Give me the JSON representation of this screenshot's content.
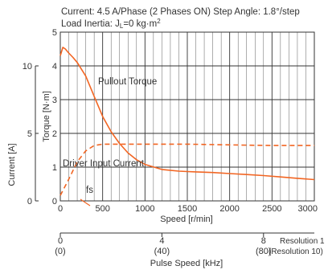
{
  "header": {
    "line1": "Current: 4.5 A/Phase (2 Phases ON)   Step Angle: 1.8°/step",
    "line2_prefix": "Load Inertia: J",
    "line2_sub": "L",
    "line2_suffix": "=0 kg·m",
    "line2_sup": "2"
  },
  "colors": {
    "curve": "#f26522",
    "grid": "#333333",
    "text": "#333333"
  },
  "chart_data": {
    "type": "line",
    "xlabel": "Speed [r/min]",
    "xlim": [
      0,
      3000
    ],
    "x_ticks": [
      0,
      500,
      1000,
      1500,
      2000,
      2500,
      3000
    ],
    "minor_x_step": 100,
    "y_torque": {
      "label": "Torque [N·m]",
      "lim": [
        0,
        5
      ],
      "ticks": [
        0,
        1,
        2,
        3,
        4,
        5
      ]
    },
    "y_current": {
      "label": "Current [A]",
      "ticks": [
        0,
        5,
        10
      ]
    },
    "grid": true,
    "series": [
      {
        "name": "Pullout Torque",
        "axis": "torque",
        "style": "solid",
        "x": [
          0,
          30,
          60,
          100,
          150,
          200,
          300,
          400,
          500,
          600,
          700,
          800,
          900,
          1000,
          1200,
          1400,
          1500,
          1600,
          1800,
          2000,
          2200,
          2400,
          2600,
          2800,
          3000
        ],
        "y": [
          4.3,
          4.55,
          4.5,
          4.38,
          4.25,
          4.1,
          3.7,
          3.1,
          2.5,
          2.05,
          1.7,
          1.42,
          1.22,
          1.08,
          0.93,
          0.88,
          0.87,
          0.86,
          0.84,
          0.81,
          0.78,
          0.75,
          0.71,
          0.67,
          0.63
        ]
      },
      {
        "name": "Driver Input Current",
        "axis": "current",
        "style": "dashed",
        "x": [
          0,
          100,
          200,
          300,
          400,
          500,
          1000,
          1500,
          2000,
          2500,
          3000
        ],
        "y": [
          0.4,
          1.6,
          2.9,
          3.7,
          4.1,
          4.2,
          4.2,
          4.2,
          4.15,
          4.1,
          4.1
        ]
      }
    ],
    "annotations": [
      {
        "text": "Pullout Torque"
      },
      {
        "text": "Driver Input Current"
      },
      {
        "text": "fs",
        "x": 300
      }
    ],
    "secondary_axis": {
      "label": "Pulse Speed [kHz]",
      "ticks": [
        {
          "speed": 0,
          "upper": "0",
          "lower": "(0)"
        },
        {
          "speed": 1200,
          "upper": "4",
          "lower": "(40)"
        },
        {
          "speed": 2400,
          "upper": "8",
          "lower": "(80)"
        }
      ],
      "resolution_labels": [
        "Resolution 1",
        "(Resolution 10)"
      ]
    }
  }
}
